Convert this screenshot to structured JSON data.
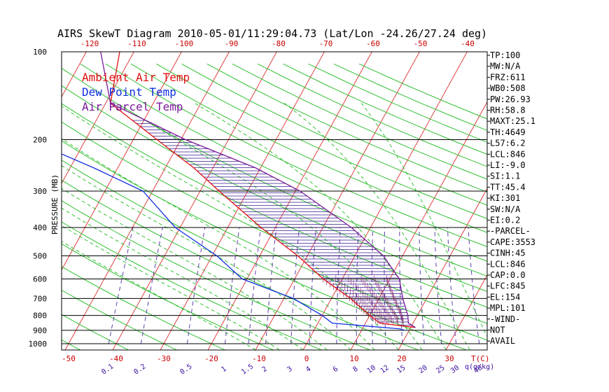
{
  "chart_data": {
    "type": "line",
    "title": "AIRS SkewT Diagram 2010-05-01/11:29:04.73 (Lat/Lon -24.26/27.24 deg)",
    "ylabel": "PRESSURE (MB)",
    "xlabel": "T(C)",
    "mixing_ratio_label": "q(g/kg)",
    "y_scale": "log",
    "ylim": [
      1000,
      100
    ],
    "pressure_ticks": [
      100,
      200,
      300,
      400,
      500,
      600,
      700,
      800,
      900,
      1000
    ],
    "bottom_temp_ticks": [
      -50,
      -40,
      -30,
      -20,
      -10,
      0,
      10,
      20,
      30
    ],
    "top_temp_ticks": [
      -120,
      -110,
      -100,
      -90,
      -80,
      -70,
      -60,
      -50,
      -40
    ],
    "mixing_ratio_ticks": [
      "0.1",
      "0.2",
      "0.5",
      "1",
      "1.5",
      "2",
      "3",
      "4",
      "6",
      "8",
      "10",
      "12",
      "15",
      "20",
      "25",
      "30",
      "40"
    ],
    "legend": [
      {
        "name": "Ambient Air Temp",
        "color": "#e01010"
      },
      {
        "name": "Dew Point Temp",
        "color": "#1030e0"
      },
      {
        "name": "Air Parcel Temp",
        "color": "#7a1a9a"
      }
    ],
    "series": [
      {
        "name": "Ambient Air Temp",
        "color": "#e01010",
        "points": [
          {
            "p": 100,
            "t": -73
          },
          {
            "p": 150,
            "t": -69
          },
          {
            "p": 200,
            "t": -55
          },
          {
            "p": 250,
            "t": -44
          },
          {
            "p": 300,
            "t": -36
          },
          {
            "p": 400,
            "t": -23
          },
          {
            "p": 500,
            "t": -12
          },
          {
            "p": 600,
            "t": -4
          },
          {
            "p": 700,
            "t": 4
          },
          {
            "p": 800,
            "t": 10
          },
          {
            "p": 850,
            "t": 13
          },
          {
            "p": 880,
            "t": 21
          }
        ]
      },
      {
        "name": "Dew Point Temp",
        "color": "#1030e0",
        "points": [
          {
            "p": 100,
            "t": -106
          },
          {
            "p": 150,
            "t": -96
          },
          {
            "p": 200,
            "t": -82
          },
          {
            "p": 250,
            "t": -65
          },
          {
            "p": 300,
            "t": -52
          },
          {
            "p": 400,
            "t": -41
          },
          {
            "p": 500,
            "t": -29
          },
          {
            "p": 600,
            "t": -21
          },
          {
            "p": 700,
            "t": -8
          },
          {
            "p": 800,
            "t": 0
          },
          {
            "p": 850,
            "t": 3
          },
          {
            "p": 890,
            "t": 18
          },
          {
            "p": 900,
            "t": 19
          }
        ]
      },
      {
        "name": "Air Parcel Temp",
        "color": "#7a1a9a",
        "points": [
          {
            "p": 100,
            "t": -77
          },
          {
            "p": 150,
            "t": -69
          },
          {
            "p": 200,
            "t": -49
          },
          {
            "p": 250,
            "t": -31
          },
          {
            "p": 300,
            "t": -19
          },
          {
            "p": 400,
            "t": -4
          },
          {
            "p": 500,
            "t": 6
          },
          {
            "p": 600,
            "t": 12
          },
          {
            "p": 700,
            "t": 15
          },
          {
            "p": 800,
            "t": 18
          },
          {
            "p": 850,
            "t": 19
          },
          {
            "p": 880,
            "t": 21
          }
        ]
      }
    ],
    "indices": [
      "TP:100",
      "MW:N/A",
      "FRZ:611",
      "WB0:508",
      "PW:26.93",
      "RH:58.8",
      "MAXT:25.1",
      "TH:4649",
      "L57:6.2",
      "LCL:846",
      "LI:-9.0",
      "SI:1.1",
      "TT:45.4",
      "KI:301",
      "SW:N/A",
      "EI:0.2",
      "-PARCEL-",
      "CAPE:3553",
      "CINH:45",
      "LCL:846",
      "CAP:0.0",
      "LFC:845",
      "EL:154",
      "MPL:101",
      "-WIND-",
      "NOT",
      "AVAIL"
    ]
  }
}
